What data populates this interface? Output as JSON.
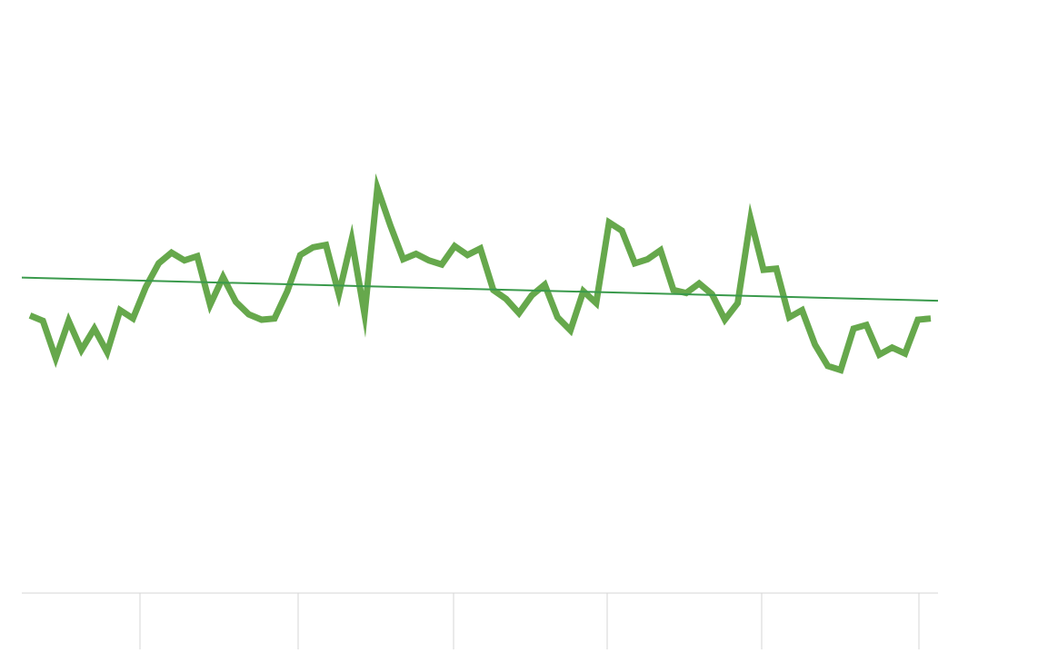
{
  "chart_data": {
    "type": "line",
    "title": "",
    "xlabel": "",
    "ylabel": "",
    "x_tick_labels": [],
    "y_tick_labels": [],
    "grid": false,
    "legend": "none",
    "ylim": [
      0,
      100
    ],
    "series": [
      {
        "color": "#66a84c",
        "values": [
          46.8,
          45.9,
          39.6,
          45.9,
          41.0,
          44.6,
          40.6,
          47.7,
          46.3,
          51.6,
          55.6,
          57.4,
          56.1,
          56.8,
          48.6,
          53.3,
          49.1,
          47.0,
          46.1,
          46.3,
          50.9,
          57.0,
          58.3,
          58.7,
          50.4,
          59.6,
          47.0,
          68.3,
          62.0,
          56.3,
          57.2,
          56.1,
          55.4,
          58.5,
          57.0,
          58.1,
          51.1,
          49.6,
          47.2,
          50.2,
          52.0,
          46.5,
          44.3,
          50.9,
          48.9,
          62.5,
          61.1,
          55.6,
          56.3,
          57.8,
          51.1,
          50.6,
          52.2,
          50.4,
          46.1,
          48.9,
          63.1,
          54.5,
          54.7,
          46.5,
          47.7,
          41.9,
          38.3,
          37.6,
          44.6,
          45.2,
          40.2,
          41.4,
          40.4,
          46.1,
          46.3
        ]
      },
      {
        "color": "#3a9a4c",
        "values": [
          53.2,
          49.3
        ]
      }
    ]
  }
}
